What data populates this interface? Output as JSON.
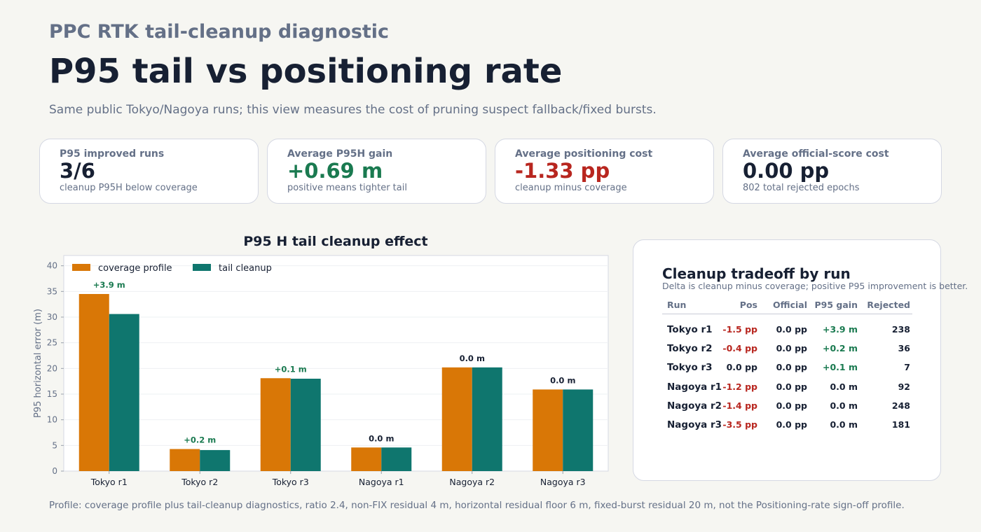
{
  "header": {
    "kicker": "PPC RTK tail-cleanup diagnostic",
    "title": "P95 tail vs positioning rate",
    "subtitle": "Same public Tokyo/Nagoya runs; this view measures the cost of pruning suspect fallback/fixed bursts."
  },
  "cards": [
    {
      "label": "P95 improved runs",
      "value": "3/6",
      "note": "cleanup P95H below coverage",
      "color": "#172033"
    },
    {
      "label": "Average P95H gain",
      "value": "+0.69 m",
      "note": "positive means tighter tail",
      "color": "#1a7a50"
    },
    {
      "label": "Average positioning cost",
      "value": "-1.33 pp",
      "note": "cleanup minus coverage",
      "color": "#b8261f"
    },
    {
      "label": "Average official-score cost",
      "value": "0.00 pp",
      "note": "802 total rejected epochs",
      "color": "#172033"
    }
  ],
  "chart_data": {
    "type": "bar",
    "title": "P95 H tail cleanup effect",
    "ylabel": "P95 horizontal error (m)",
    "xlabel": "",
    "categories": [
      "Tokyo r1",
      "Tokyo r2",
      "Tokyo r3",
      "Nagoya r1",
      "Nagoya r2",
      "Nagoya r3"
    ],
    "series": [
      {
        "name": "coverage profile",
        "color": "#d97706",
        "values": [
          34.5,
          4.3,
          18.1,
          4.6,
          20.2,
          15.9
        ]
      },
      {
        "name": "tail cleanup",
        "color": "#0f766e",
        "values": [
          30.6,
          4.1,
          18.0,
          4.6,
          20.2,
          15.9
        ]
      }
    ],
    "annotations": [
      "+3.9 m",
      "+0.2 m",
      "+0.1 m",
      "0.0 m",
      "0.0 m",
      "0.0 m"
    ],
    "annotation_colors": [
      "#1a7a50",
      "#1a7a50",
      "#1a7a50",
      "#172033",
      "#172033",
      "#172033"
    ],
    "ylim": [
      0,
      42
    ],
    "yticks": [
      0,
      5,
      10,
      15,
      20,
      25,
      30,
      35,
      40
    ],
    "grid": true,
    "legend": "top-left"
  },
  "table": {
    "title": "Cleanup tradeoff by run",
    "subtitle": "Delta is cleanup minus coverage; positive P95 improvement is better.",
    "headers": [
      "Run",
      "Pos",
      "Official",
      "P95 gain",
      "Rejected"
    ],
    "rows": [
      {
        "run": "Tokyo r1",
        "pos": "-1.5 pp",
        "official": "0.0 pp",
        "gain": "+3.9 m",
        "rejected": "238",
        "pos_color": "#b8261f",
        "gain_color": "#1a7a50"
      },
      {
        "run": "Tokyo r2",
        "pos": "-0.4 pp",
        "official": "0.0 pp",
        "gain": "+0.2 m",
        "rejected": "36",
        "pos_color": "#b8261f",
        "gain_color": "#1a7a50"
      },
      {
        "run": "Tokyo r3",
        "pos": "0.0 pp",
        "official": "0.0 pp",
        "gain": "+0.1 m",
        "rejected": "7",
        "pos_color": "#172033",
        "gain_color": "#1a7a50"
      },
      {
        "run": "Nagoya r1",
        "pos": "-1.2 pp",
        "official": "0.0 pp",
        "gain": "0.0 m",
        "rejected": "92",
        "pos_color": "#b8261f",
        "gain_color": "#172033"
      },
      {
        "run": "Nagoya r2",
        "pos": "-1.4 pp",
        "official": "0.0 pp",
        "gain": "0.0 m",
        "rejected": "248",
        "pos_color": "#b8261f",
        "gain_color": "#172033"
      },
      {
        "run": "Nagoya r3",
        "pos": "-3.5 pp",
        "official": "0.0 pp",
        "gain": "0.0 m",
        "rejected": "181",
        "pos_color": "#b8261f",
        "gain_color": "#172033"
      }
    ]
  },
  "footer": "Profile: coverage profile plus tail-cleanup diagnostics, ratio 2.4, non-FIX residual 4 m, horizontal residual floor 6 m, fixed-burst residual 20 m, not the Positioning-rate sign-off profile."
}
